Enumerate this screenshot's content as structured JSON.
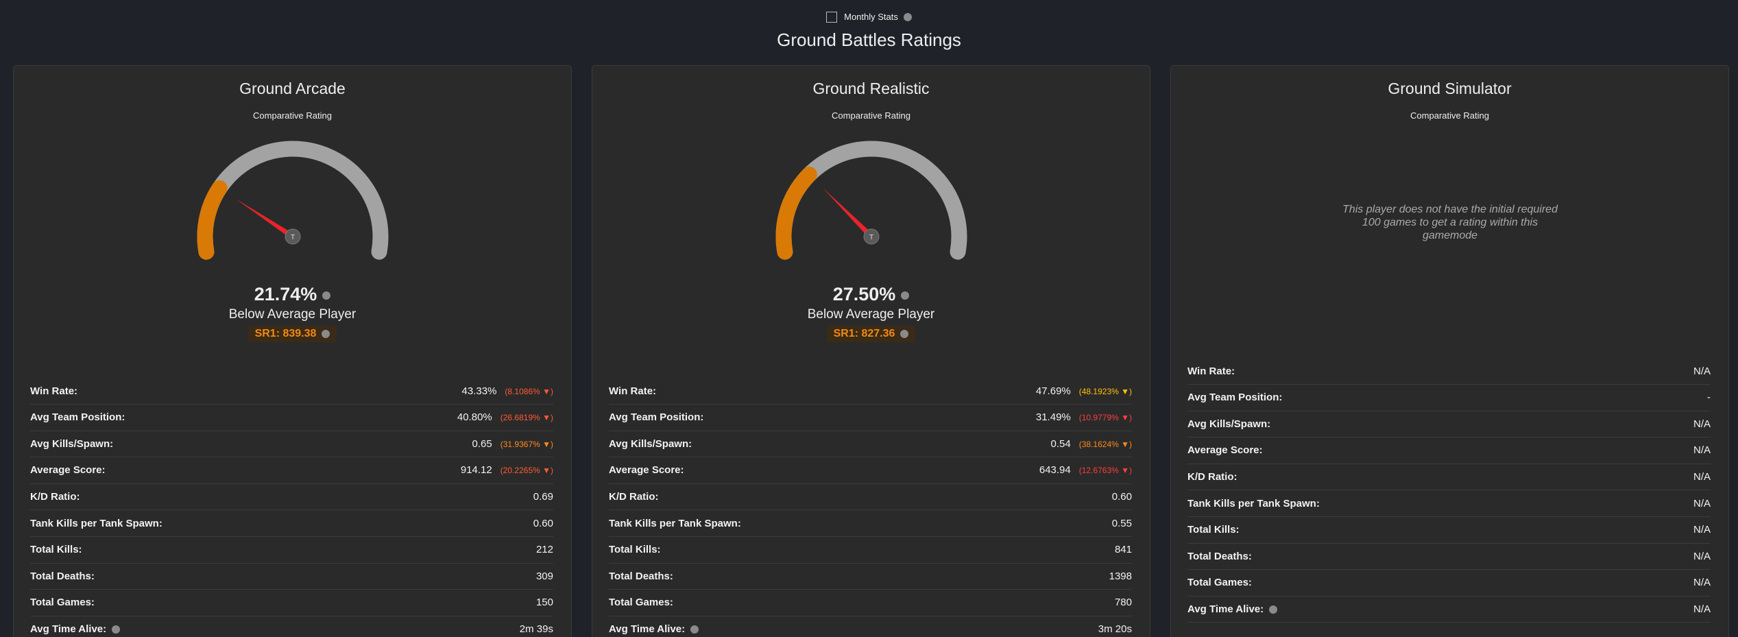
{
  "header": {
    "checkbox_label": "Monthly Stats",
    "title": "Ground Battles Ratings"
  },
  "cards": [
    {
      "title": "Ground Arcade",
      "subtitle": "Comparative Rating",
      "gauge": {
        "value": 21.74,
        "label": "21.74%",
        "range": [
          0,
          100
        ],
        "hub": "T"
      },
      "rating_text": "Below Average Player",
      "sr": "SR1: 839.38",
      "stats": [
        {
          "label": "Win Rate:",
          "value": "43.33%",
          "delta": "(8.1086% ▼)",
          "delta_color": "#ff5a36"
        },
        {
          "label": "Avg Team Position:",
          "value": "40.80%",
          "delta": "(26.6819% ▼)",
          "delta_color": "#ff5a36"
        },
        {
          "label": "Avg Kills/Spawn:",
          "value": "0.65",
          "delta": "(31.9367% ▼)",
          "delta_color": "#ff8a1a"
        },
        {
          "label": "Average Score:",
          "value": "914.12",
          "delta": "(20.2265% ▼)",
          "delta_color": "#ff5a36"
        },
        {
          "label": "K/D Ratio:",
          "value": "0.69"
        },
        {
          "label": "Tank Kills per Tank Spawn:",
          "value": "0.60"
        },
        {
          "label": "Total Kills:",
          "value": "212"
        },
        {
          "label": "Total Deaths:",
          "value": "309"
        },
        {
          "label": "Total Games:",
          "value": "150"
        },
        {
          "label": "Avg Time Alive:",
          "value": "2m 39s",
          "info": true
        }
      ]
    },
    {
      "title": "Ground Realistic",
      "subtitle": "Comparative Rating",
      "gauge": {
        "value": 27.5,
        "label": "27.50%",
        "range": [
          0,
          100
        ],
        "hub": "T"
      },
      "rating_text": "Below Average Player",
      "sr": "SR1: 827.36",
      "stats": [
        {
          "label": "Win Rate:",
          "value": "47.69%",
          "delta": "(48.1923% ▼)",
          "delta_color": "#ffc107"
        },
        {
          "label": "Avg Team Position:",
          "value": "31.49%",
          "delta": "(10.9779% ▼)",
          "delta_color": "#ff3d3d"
        },
        {
          "label": "Avg Kills/Spawn:",
          "value": "0.54",
          "delta": "(38.1624% ▼)",
          "delta_color": "#ff8a1a"
        },
        {
          "label": "Average Score:",
          "value": "643.94",
          "delta": "(12.6763% ▼)",
          "delta_color": "#ff3d3d"
        },
        {
          "label": "K/D Ratio:",
          "value": "0.60"
        },
        {
          "label": "Tank Kills per Tank Spawn:",
          "value": "0.55"
        },
        {
          "label": "Total Kills:",
          "value": "841"
        },
        {
          "label": "Total Deaths:",
          "value": "1398"
        },
        {
          "label": "Total Games:",
          "value": "780"
        },
        {
          "label": "Avg Time Alive:",
          "value": "3m 20s",
          "info": true
        }
      ]
    },
    {
      "title": "Ground Simulator",
      "subtitle": "Comparative Rating",
      "message": "This player does not have the initial required 100 games to get a rating within this gamemode",
      "stats": [
        {
          "label": "Win Rate:",
          "value": "N/A"
        },
        {
          "label": "Avg Team Position:",
          "value": "-"
        },
        {
          "label": "Avg Kills/Spawn:",
          "value": "N/A"
        },
        {
          "label": "Average Score:",
          "value": "N/A"
        },
        {
          "label": "K/D Ratio:",
          "value": "N/A"
        },
        {
          "label": "Tank Kills per Tank Spawn:",
          "value": "N/A"
        },
        {
          "label": "Total Kills:",
          "value": "N/A"
        },
        {
          "label": "Total Deaths:",
          "value": "N/A"
        },
        {
          "label": "Total Games:",
          "value": "N/A"
        },
        {
          "label": "Avg Time Alive:",
          "value": "N/A",
          "info": true
        }
      ]
    }
  ]
}
